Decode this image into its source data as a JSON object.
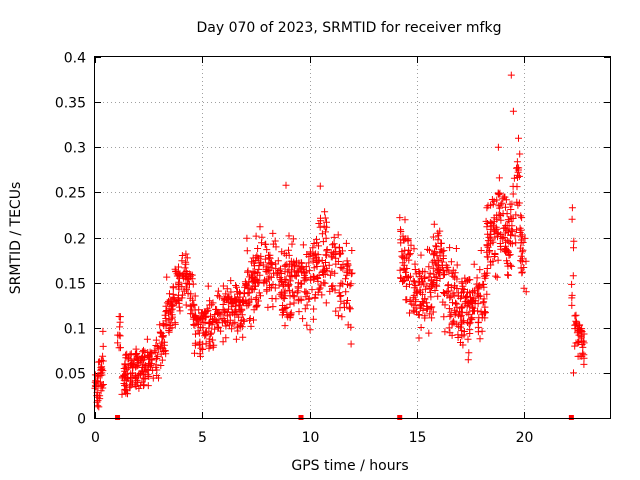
{
  "chart_data": {
    "type": "scatter",
    "title": "Day 070 of 2023, SRMTID for receiver mfkg",
    "xlabel": "GPS time / hours",
    "ylabel": "SRMTID / TECUs",
    "xlim": [
      0,
      24
    ],
    "ylim": [
      0,
      0.4
    ],
    "x_ticks": [
      0,
      5,
      10,
      15,
      20
    ],
    "x_tick_labels": [
      "0",
      "5",
      "10",
      "15",
      "20"
    ],
    "y_ticks": [
      0,
      0.05,
      0.1,
      0.15,
      0.2,
      0.25,
      0.3,
      0.35,
      0.4
    ],
    "y_tick_labels": [
      "0",
      "0.05",
      "0.1",
      "0.15",
      "0.2",
      "0.25",
      "0.3",
      "0.35",
      "0.4"
    ],
    "grid": true,
    "marker": "plus",
    "color": "#ff0000",
    "gap_markers_x": [
      1.05,
      9.6,
      14.2,
      22.2
    ],
    "segments": [
      {
        "x_range": [
          0.0,
          0.4
        ],
        "points": 45,
        "trend": [
          [
            0.0,
            0.03
          ],
          [
            0.2,
            0.04
          ],
          [
            0.4,
            0.07
          ]
        ],
        "spread": 0.02
      },
      {
        "x_range": [
          1.05,
          1.2
        ],
        "points": 10,
        "trend": [
          [
            1.05,
            0.09
          ],
          [
            1.2,
            0.1
          ]
        ],
        "spread": 0.02
      },
      {
        "x_range": [
          1.25,
          3.3
        ],
        "points": 170,
        "trend": [
          [
            1.25,
            0.04
          ],
          [
            2.0,
            0.06
          ],
          [
            2.8,
            0.06
          ],
          [
            3.3,
            0.09
          ]
        ],
        "spread": 0.018
      },
      {
        "x_range": [
          3.3,
          4.6
        ],
        "points": 110,
        "trend": [
          [
            3.3,
            0.11
          ],
          [
            3.9,
            0.14
          ],
          [
            4.3,
            0.16
          ],
          [
            4.6,
            0.13
          ]
        ],
        "spread": 0.022
      },
      {
        "x_range": [
          4.6,
          7.0
        ],
        "points": 190,
        "trend": [
          [
            4.6,
            0.1
          ],
          [
            5.5,
            0.11
          ],
          [
            6.3,
            0.12
          ],
          [
            7.0,
            0.12
          ]
        ],
        "spread": 0.022
      },
      {
        "x_range": [
          7.0,
          9.0
        ],
        "points": 170,
        "trend": [
          [
            7.0,
            0.14
          ],
          [
            7.8,
            0.17
          ],
          [
            8.5,
            0.15
          ],
          [
            9.0,
            0.14
          ]
        ],
        "spread": 0.03
      },
      {
        "x_range": [
          9.0,
          12.0
        ],
        "points": 230,
        "trend": [
          [
            9.0,
            0.15
          ],
          [
            10.0,
            0.15
          ],
          [
            10.8,
            0.18
          ],
          [
            11.5,
            0.15
          ],
          [
            12.0,
            0.13
          ]
        ],
        "spread": 0.033
      },
      {
        "x_range": [
          14.2,
          16.2
        ],
        "points": 180,
        "trend": [
          [
            14.2,
            0.19
          ],
          [
            14.8,
            0.15
          ],
          [
            15.4,
            0.14
          ],
          [
            16.2,
            0.18
          ]
        ],
        "spread": 0.03
      },
      {
        "x_range": [
          16.2,
          18.2
        ],
        "points": 180,
        "trend": [
          [
            16.2,
            0.15
          ],
          [
            16.8,
            0.13
          ],
          [
            17.5,
            0.12
          ],
          [
            18.2,
            0.14
          ]
        ],
        "spread": 0.032
      },
      {
        "x_range": [
          18.2,
          19.8
        ],
        "points": 150,
        "trend": [
          [
            18.2,
            0.18
          ],
          [
            18.8,
            0.22
          ],
          [
            19.3,
            0.2
          ],
          [
            19.8,
            0.27
          ]
        ],
        "spread": 0.035
      },
      {
        "x_range": [
          19.8,
          20.1
        ],
        "points": 25,
        "trend": [
          [
            19.8,
            0.2
          ],
          [
            20.1,
            0.15
          ]
        ],
        "spread": 0.03
      },
      {
        "x_range": [
          22.2,
          22.35
        ],
        "points": 8,
        "trend": [
          [
            22.2,
            0.16
          ],
          [
            22.35,
            0.2
          ]
        ],
        "spread": 0.04
      },
      {
        "x_range": [
          22.35,
          22.8
        ],
        "points": 45,
        "trend": [
          [
            22.35,
            0.1
          ],
          [
            22.6,
            0.09
          ],
          [
            22.8,
            0.08
          ]
        ],
        "spread": 0.015
      }
    ],
    "outliers": [
      [
        19.4,
        0.38
      ],
      [
        19.5,
        0.34
      ],
      [
        18.8,
        0.3
      ],
      [
        10.5,
        0.257
      ],
      [
        8.9,
        0.258
      ],
      [
        22.25,
        0.233
      ],
      [
        22.3,
        0.05
      ]
    ]
  }
}
